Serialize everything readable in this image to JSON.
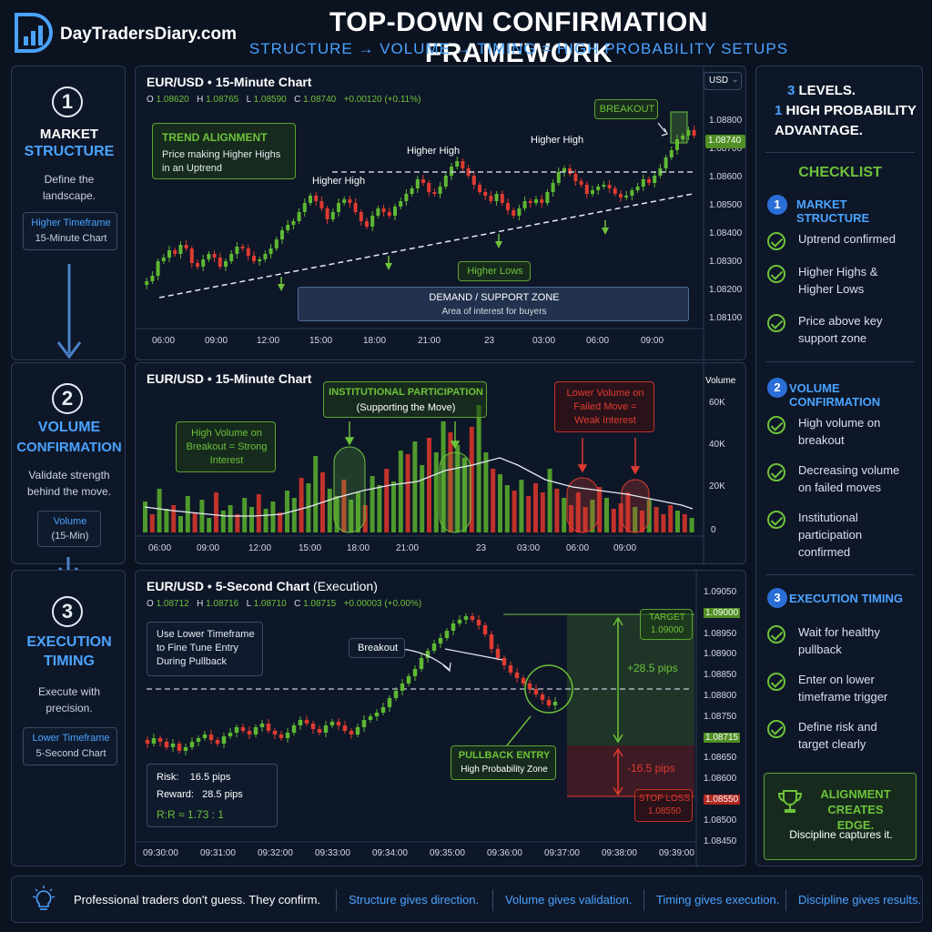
{
  "header": {
    "brand": "DayTradersDiary.com",
    "title": "TOP-DOWN CONFIRMATION FRAMEWORK",
    "subtitle": "STRUCTURE → VOLUME → TIMING = HIGH PROBABILITY SETUPS"
  },
  "steps": [
    {
      "num": "1",
      "title_a": "MARKET",
      "title_b": "STRUCTURE",
      "desc": "Define the landscape.",
      "tag_a": "Higher Timeframe",
      "tag_b": "15-Minute Chart"
    },
    {
      "num": "2",
      "title_a": "VOLUME",
      "title_b": "CONFIRMATION",
      "desc": "Validate strength behind the move.",
      "tag_a": "Volume",
      "tag_b": "(15-Min)"
    },
    {
      "num": "3",
      "title_a": "EXECUTION",
      "title_b": "TIMING",
      "desc": "Execute with precision.",
      "tag_a": "Lower Timeframe",
      "tag_b": "5-Second Chart"
    }
  ],
  "chart1": {
    "title": "EUR/USD • 15-Minute Chart",
    "ohlc": {
      "o_label": "O",
      "o": "1.08620",
      "h_label": "H",
      "h": "1.08765",
      "l_label": "L",
      "l": "1.08590",
      "c_label": "C",
      "c": "1.08740",
      "chg": "+0.00120 (+0.11%)"
    },
    "currency": "USD",
    "trend_title": "TREND ALIGNMENT",
    "trend_desc": "Price making Higher Highs in an Uptrend",
    "hh_labels": [
      "Higher High",
      "Higher High",
      "Higher High"
    ],
    "breakout_label": "BREAKOUT",
    "higher_lows_label": "Higher Lows",
    "zone_title": "DEMAND / SUPPORT ZONE",
    "zone_desc": "Area of interest for buyers",
    "y_ticks": [
      "1.08800",
      "1.08700",
      "1.08600",
      "1.08500",
      "1.08400",
      "1.08300",
      "1.08200",
      "1.08100"
    ],
    "price_tag": "1.08740",
    "x_ticks": [
      "06:00",
      "09:00",
      "12:00",
      "15:00",
      "18:00",
      "21:00",
      "23",
      "03:00",
      "06:00",
      "09:00"
    ]
  },
  "chart2": {
    "title": "EUR/USD • 15-Minute Chart",
    "y_title": "Volume",
    "y_ticks": [
      "60K",
      "40K",
      "20K",
      "0"
    ],
    "inst_title": "INSTITUTIONAL PARTICIPATION",
    "inst_desc": "(Supporting the Move)",
    "high_vol": "High Volume on Breakout = Strong Interest",
    "low_vol": "Lower Volume on Failed Move = Weak Interest",
    "x_ticks": [
      "06:00",
      "09:00",
      "12:00",
      "15:00",
      "18:00",
      "21:00",
      "23",
      "03:00",
      "06:00",
      "09:00"
    ]
  },
  "chart3": {
    "title": "EUR/USD • 5-Second Chart",
    "title_suffix": "(Execution)",
    "ohlc": {
      "o_label": "O",
      "o": "1.08712",
      "h_label": "H",
      "h": "1.08716",
      "l_label": "L",
      "l": "1.08710",
      "c_label": "C",
      "c": "1.08715",
      "chg": "+0.00003 (+0.00%)"
    },
    "note": "Use Lower Timeframe to Fine Tune Entry During Pullback",
    "breakout": "Breakout",
    "target_label": "TARGET",
    "target_value": "1.09000",
    "stop_label": "STOP LOSS",
    "stop_value": "1.08550",
    "plus_pips": "+28.5 pips",
    "minus_pips": "-16.5 pips",
    "pullback_title": "PULLBACK ENTRY",
    "pullback_desc": "High Probability Zone",
    "risk_label": "Risk:",
    "risk": "16.5 pips",
    "reward_label": "Reward:",
    "reward": "28.5 pips",
    "rr": "R:R ≈ 1.73 : 1",
    "y_ticks": [
      "1.09050",
      "1.09000",
      "1.08950",
      "1.08900",
      "1.08850",
      "1.08800",
      "1.08750",
      "1.08715",
      "1.08650",
      "1.08600",
      "1.08550",
      "1.08500",
      "1.08450"
    ],
    "x_ticks": [
      "09:30:00",
      "09:31:00",
      "09:32:00",
      "09:33:00",
      "09:34:00",
      "09:35:00",
      "09:36:00",
      "09:37:00",
      "09:38:00",
      "09:39:00"
    ]
  },
  "sidebar": {
    "levels_num": "3",
    "levels_text": "LEVELS.",
    "prob_num": "1",
    "prob_text": "HIGH PROBABILITY ADVANTAGE.",
    "checklist_title": "CHECKLIST",
    "sections": [
      {
        "num": "1",
        "title": "MARKET STRUCTURE",
        "items": [
          "Uptrend confirmed",
          "Higher Highs & Higher Lows",
          "Price above key support zone"
        ]
      },
      {
        "num": "2",
        "title": "VOLUME CONFIRMATION",
        "items": [
          "High volume on breakout",
          "Decreasing volume on failed moves",
          "Institutional participation confirmed"
        ]
      },
      {
        "num": "3",
        "title": "EXECUTION TIMING",
        "items": [
          "Wait for healthy pullback",
          "Enter on lower timeframe trigger",
          "Define risk and target clearly"
        ]
      }
    ],
    "edge_title": "ALIGNMENT CREATES EDGE.",
    "edge_desc": "Discipline captures it."
  },
  "footer": {
    "quote": "Professional traders don't guess. They confirm.",
    "items": [
      "Structure gives direction.",
      "Volume gives validation.",
      "Timing gives execution.",
      "Discipline gives results."
    ]
  }
}
